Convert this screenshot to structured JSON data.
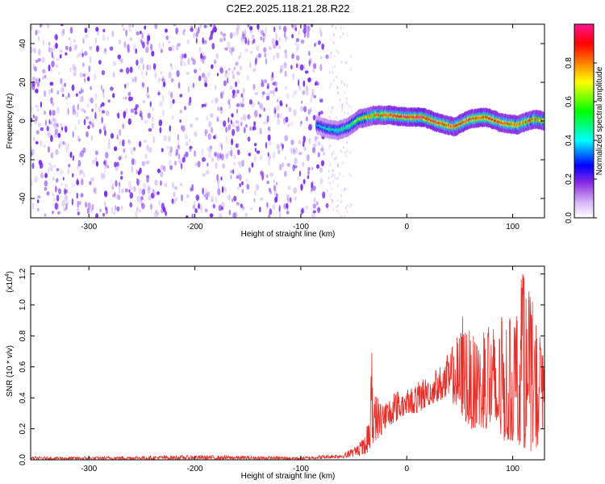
{
  "title": "C2E2.2025.118.21.28.R22",
  "colors": {
    "snr_line": "#e8302a",
    "spectrogram_noise": "#7b2cf0",
    "axis": "#000000",
    "background": "#ffffff"
  },
  "chart_data": [
    {
      "type": "heatmap",
      "xlabel": "Height of straight line (km)",
      "ylabel": "Frequency (Hz)",
      "xlim": [
        -355,
        130
      ],
      "ylim": [
        -50,
        50
      ],
      "x_ticks": [
        {
          "value": -300,
          "label": "-300"
        },
        {
          "value": -200,
          "label": "-200"
        },
        {
          "value": -100,
          "label": "-100"
        },
        {
          "value": 0,
          "label": "0"
        },
        {
          "value": 100,
          "label": "100"
        }
      ],
      "y_ticks": [
        {
          "value": -40,
          "label": "-40"
        },
        {
          "value": -20,
          "label": "-20"
        },
        {
          "value": 0,
          "label": "0"
        },
        {
          "value": 20,
          "label": "20"
        },
        {
          "value": 40,
          "label": "40"
        }
      ],
      "colorbar": {
        "label": "Normalized spectral amplitude",
        "range": [
          0,
          1
        ],
        "ticks": [
          {
            "value": 0.0,
            "label": "0.0"
          },
          {
            "value": 0.2,
            "label": "0.2"
          },
          {
            "value": 0.4,
            "label": "0.4"
          },
          {
            "value": 0.6,
            "label": "0.6"
          },
          {
            "value": 0.8,
            "label": "0.8"
          }
        ],
        "colormap": [
          "#ffffff",
          "#8a2be2",
          "#0000ff",
          "#00ffff",
          "#00ff00",
          "#ffff00",
          "#ff7f00",
          "#ff0000",
          "#ff1493"
        ]
      },
      "noise_region": {
        "x_range": [
          -355,
          -75
        ],
        "y_range": [
          -50,
          50
        ],
        "typical_amplitude": 0.15
      },
      "signal_ridge": {
        "x": [
          -85,
          -75,
          -65,
          -55,
          -45,
          -30,
          -15,
          0,
          15,
          30,
          45,
          60,
          75,
          90,
          105,
          120,
          130
        ],
        "frequency": [
          -2,
          -4,
          -5,
          -3,
          1,
          3,
          3,
          2,
          2,
          -1,
          -3,
          1,
          2,
          -1,
          -2,
          1,
          0
        ],
        "amplitude": [
          0.35,
          0.4,
          0.45,
          0.5,
          0.6,
          0.75,
          0.85,
          0.85,
          0.9,
          0.85,
          0.8,
          0.85,
          0.85,
          0.8,
          0.8,
          0.75,
          0.7
        ]
      }
    },
    {
      "type": "line",
      "xlabel": "Height of straight line (km)",
      "ylabel": "SNR (10 * v/v)",
      "y_multiplier": "(x10",
      "y_multiplier_exp": "4",
      "y_multiplier_close": ")",
      "xlim": [
        -355,
        130
      ],
      "ylim": [
        0,
        1.25
      ],
      "x_ticks": [
        {
          "value": -300,
          "label": "-300"
        },
        {
          "value": -200,
          "label": "-200"
        },
        {
          "value": -100,
          "label": "-100"
        },
        {
          "value": 0,
          "label": "0"
        },
        {
          "value": 100,
          "label": "100"
        }
      ],
      "y_ticks": [
        {
          "value": 0.0,
          "label": "0.0"
        },
        {
          "value": 0.2,
          "label": "0.2"
        },
        {
          "value": 0.4,
          "label": "0.4"
        },
        {
          "value": 0.6,
          "label": "0.6"
        },
        {
          "value": 0.8,
          "label": "0.8"
        },
        {
          "value": 1.0,
          "label": "1.0"
        },
        {
          "value": 1.2,
          "label": "1.2"
        }
      ],
      "series": [
        {
          "x": [
            -355,
            -300,
            -250,
            -200,
            -150,
            -100,
            -60,
            -50,
            -40,
            -35,
            -33,
            -30,
            -25,
            -20,
            -10,
            0,
            10,
            20,
            30,
            40,
            50,
            55,
            60,
            70,
            80,
            85,
            90,
            100,
            105,
            110,
            115,
            120,
            125,
            130
          ],
          "envelope_low": [
            0.0,
            0.0,
            0.0,
            0.0,
            0.0,
            0.0,
            0.01,
            0.02,
            0.03,
            0.05,
            0.1,
            0.12,
            0.15,
            0.2,
            0.25,
            0.3,
            0.3,
            0.35,
            0.38,
            0.4,
            0.3,
            0.25,
            0.2,
            0.2,
            0.2,
            0.15,
            0.12,
            0.12,
            0.1,
            0.08,
            0.06,
            0.05,
            0.1,
            0.12
          ],
          "envelope_high": [
            0.02,
            0.02,
            0.025,
            0.03,
            0.025,
            0.02,
            0.04,
            0.08,
            0.15,
            0.3,
            0.72,
            0.45,
            0.4,
            0.4,
            0.45,
            0.45,
            0.5,
            0.55,
            0.6,
            0.7,
            0.85,
            1.0,
            0.8,
            0.8,
            0.95,
            0.8,
            0.95,
            0.9,
            1.08,
            1.25,
            1.1,
            1.0,
            0.9,
            0.6
          ]
        }
      ]
    }
  ]
}
